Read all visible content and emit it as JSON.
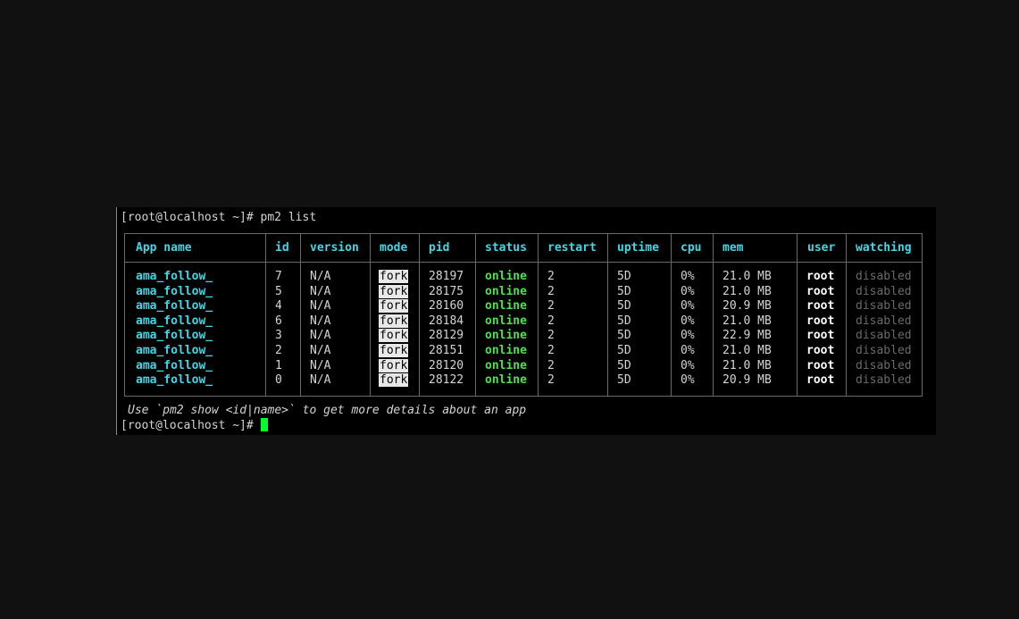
{
  "terminal": {
    "command_line": "[root@localhost ~]# pm2 list",
    "prompt": "[root@localhost ~]# ",
    "hint": "Use `pm2 show <id|name>` to get more details about an app",
    "cursor_color": "#00ff2a"
  },
  "table": {
    "headers": [
      "App name",
      "id",
      "version",
      "mode",
      "pid",
      "status",
      "restart",
      "uptime",
      "cpu",
      "mem",
      "user",
      "watching"
    ],
    "rows": [
      [
        "ama_follow_",
        "7",
        "N/A",
        "fork",
        "28197",
        "online",
        "2",
        "5D",
        "0%",
        "21.0 MB",
        "root",
        "disabled"
      ],
      [
        "ama_follow_",
        "5",
        "N/A",
        "fork",
        "28175",
        "online",
        "2",
        "5D",
        "0%",
        "21.0 MB",
        "root",
        "disabled"
      ],
      [
        "ama_follow_",
        "4",
        "N/A",
        "fork",
        "28160",
        "online",
        "2",
        "5D",
        "0%",
        "20.9 MB",
        "root",
        "disabled"
      ],
      [
        "ama_follow_",
        "6",
        "N/A",
        "fork",
        "28184",
        "online",
        "2",
        "5D",
        "0%",
        "21.0 MB",
        "root",
        "disabled"
      ],
      [
        "ama_follow_",
        "3",
        "N/A",
        "fork",
        "28129",
        "online",
        "2",
        "5D",
        "0%",
        "22.9 MB",
        "root",
        "disabled"
      ],
      [
        "ama_follow_",
        "2",
        "N/A",
        "fork",
        "28151",
        "online",
        "2",
        "5D",
        "0%",
        "21.0 MB",
        "root",
        "disabled"
      ],
      [
        "ama_follow_",
        "1",
        "N/A",
        "fork",
        "28120",
        "online",
        "2",
        "5D",
        "0%",
        "21.0 MB",
        "root",
        "disabled"
      ],
      [
        "ama_follow_",
        "0",
        "N/A",
        "fork",
        "28122",
        "online",
        "2",
        "5D",
        "0%",
        "20.9 MB",
        "root",
        "disabled"
      ]
    ]
  }
}
